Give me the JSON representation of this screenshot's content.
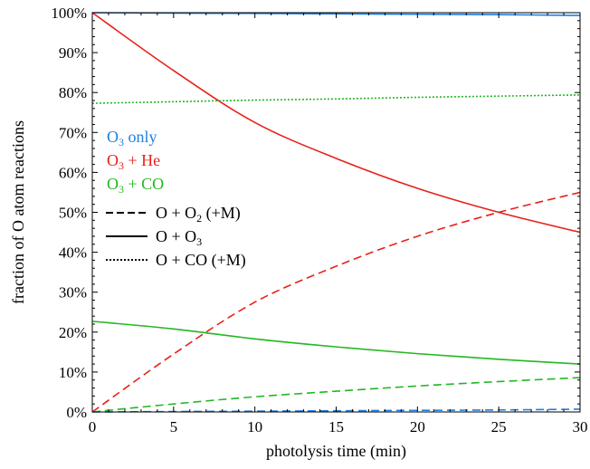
{
  "chart_data": {
    "type": "line",
    "title": "",
    "xlabel": "photolysis time (min)",
    "ylabel": "fraction of O atom reactions",
    "xlim": [
      0,
      30
    ],
    "ylim": [
      0,
      100
    ],
    "x_ticks": [
      0,
      5,
      10,
      15,
      20,
      25,
      30
    ],
    "y_ticks": [
      0,
      10,
      20,
      30,
      40,
      50,
      60,
      70,
      80,
      90,
      100
    ],
    "y_tick_suffix": "%",
    "grid": false,
    "color_legend": [
      {
        "prefix": "O",
        "sub": "3",
        "suffix": " only",
        "color": "#1f7fe0"
      },
      {
        "prefix": "O",
        "sub": "3",
        "suffix": " + He",
        "color": "#e8201a"
      },
      {
        "prefix": "O",
        "sub": "3",
        "suffix": " + CO",
        "color": "#22b822"
      }
    ],
    "style_legend": [
      {
        "dash": "dashed",
        "prefix": "O + O",
        "sub": "2",
        "suffix": " (+M)"
      },
      {
        "dash": "solid",
        "prefix": "O + O",
        "sub": "3",
        "suffix": ""
      },
      {
        "dash": "dotted",
        "prefix": "O + CO (+M)",
        "sub": "",
        "suffix": ""
      }
    ],
    "legend_position": "left-middle",
    "x": [
      0,
      5,
      10,
      15,
      20,
      25,
      30
    ],
    "series": [
      {
        "experiment": "O3 only",
        "reaction": "O + O3",
        "color": "#1f7fe0",
        "dash": "solid",
        "values": [
          100,
          99.9,
          99.8,
          99.7,
          99.6,
          99.5,
          99.3
        ]
      },
      {
        "experiment": "O3 only",
        "reaction": "O + O2 (+M)",
        "color": "#1f7fe0",
        "dash": "dashed",
        "values": [
          0,
          0.1,
          0.2,
          0.3,
          0.4,
          0.5,
          0.7
        ]
      },
      {
        "experiment": "O3 + He",
        "reaction": "O + O3",
        "color": "#e8201a",
        "dash": "solid",
        "values": [
          100,
          85.5,
          72.5,
          63.5,
          56,
          50,
          45
        ]
      },
      {
        "experiment": "O3 + He",
        "reaction": "O + O2 (+M)",
        "color": "#e8201a",
        "dash": "dashed",
        "values": [
          0,
          14.5,
          27.5,
          36.5,
          44,
          50,
          55
        ]
      },
      {
        "experiment": "O3 + CO",
        "reaction": "O + O3",
        "color": "#22b822",
        "dash": "solid",
        "values": [
          22.7,
          20.8,
          18.3,
          16.3,
          14.6,
          13.2,
          12
        ]
      },
      {
        "experiment": "O3 + CO",
        "reaction": "O + O2 (+M)",
        "color": "#22b822",
        "dash": "dashed",
        "values": [
          0,
          2,
          3.8,
          5.2,
          6.5,
          7.6,
          8.6
        ]
      },
      {
        "experiment": "O3 + CO",
        "reaction": "O + CO (+M)",
        "color": "#22b822",
        "dash": "dotted",
        "values": [
          77.3,
          77.7,
          78.1,
          78.4,
          78.8,
          79.1,
          79.4
        ]
      }
    ]
  }
}
